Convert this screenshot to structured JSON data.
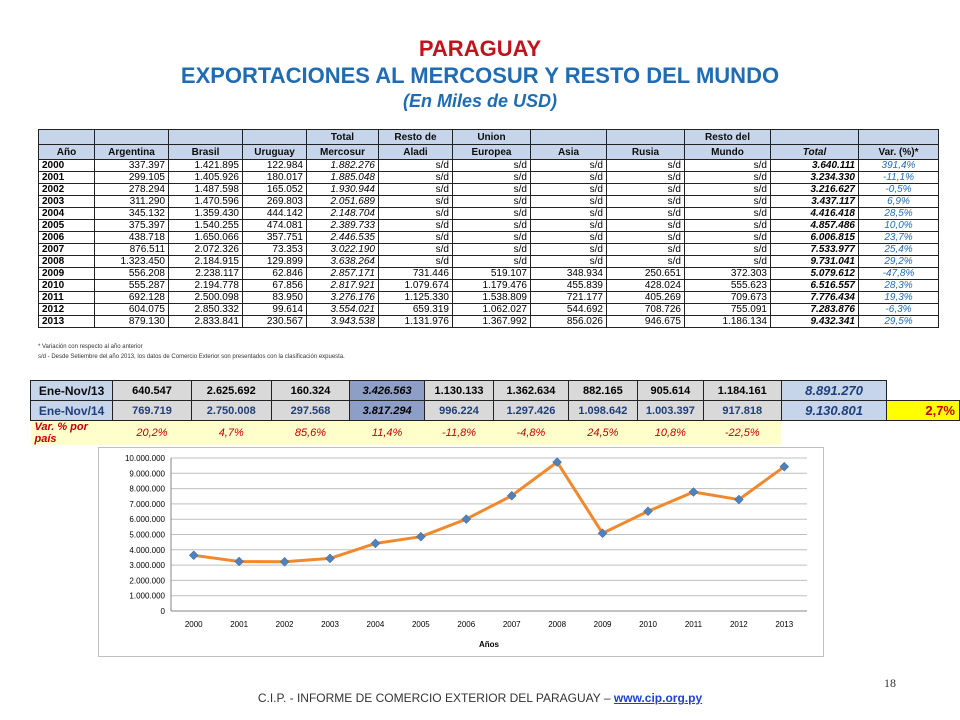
{
  "title": "PARAGUAY",
  "subtitle": "EXPORTACIONES AL MERCOSUR Y RESTO DEL MUNDO",
  "unit_note": "(En Miles de USD)",
  "table": {
    "header_row1": [
      "",
      "",
      "",
      "",
      "Total",
      "Resto de",
      "Union",
      "",
      "",
      "Resto del",
      "",
      ""
    ],
    "header_row2": [
      "Año",
      "Argentina",
      "Brasil",
      "Uruguay",
      "Mercosur",
      "Aladi",
      "Europea",
      "Asia",
      "Rusia",
      "Mundo",
      "Total",
      "Var. (%)*"
    ],
    "rows": [
      [
        "2000",
        "337.397",
        "1.421.895",
        "122.984",
        "1.882.276",
        "s/d",
        "s/d",
        "s/d",
        "s/d",
        "s/d",
        "3.640.111",
        "391,4%"
      ],
      [
        "2001",
        "299.105",
        "1.405.926",
        "180.017",
        "1.885.048",
        "s/d",
        "s/d",
        "s/d",
        "s/d",
        "s/d",
        "3.234.330",
        "-11,1%"
      ],
      [
        "2002",
        "278.294",
        "1.487.598",
        "165.052",
        "1.930.944",
        "s/d",
        "s/d",
        "s/d",
        "s/d",
        "s/d",
        "3.216.627",
        "-0,5%"
      ],
      [
        "2003",
        "311.290",
        "1.470.596",
        "269.803",
        "2.051.689",
        "s/d",
        "s/d",
        "s/d",
        "s/d",
        "s/d",
        "3.437.117",
        "6,9%"
      ],
      [
        "2004",
        "345.132",
        "1.359.430",
        "444.142",
        "2.148.704",
        "s/d",
        "s/d",
        "s/d",
        "s/d",
        "s/d",
        "4.416.418",
        "28,5%"
      ],
      [
        "2005",
        "375.397",
        "1.540.255",
        "474.081",
        "2.389.733",
        "s/d",
        "s/d",
        "s/d",
        "s/d",
        "s/d",
        "4.857.486",
        "10,0%"
      ],
      [
        "2006",
        "438.718",
        "1.650.066",
        "357.751",
        "2.446.535",
        "s/d",
        "s/d",
        "s/d",
        "s/d",
        "s/d",
        "6.006.815",
        "23,7%"
      ],
      [
        "2007",
        "876.511",
        "2.072.326",
        "73.353",
        "3.022.190",
        "s/d",
        "s/d",
        "s/d",
        "s/d",
        "s/d",
        "7.533.977",
        "25,4%"
      ],
      [
        "2008",
        "1.323.450",
        "2.184.915",
        "129.899",
        "3.638.264",
        "s/d",
        "s/d",
        "s/d",
        "s/d",
        "s/d",
        "9.731.041",
        "29,2%"
      ],
      [
        "2009",
        "556.208",
        "2.238.117",
        "62.846",
        "2.857.171",
        "731.446",
        "519.107",
        "348.934",
        "250.651",
        "372.303",
        "5.079.612",
        "-47,8%"
      ],
      [
        "2010",
        "555.287",
        "2.194.778",
        "67.856",
        "2.817.921",
        "1.079.674",
        "1.179.476",
        "455.839",
        "428.024",
        "555.623",
        "6.516.557",
        "28,3%"
      ],
      [
        "2011",
        "692.128",
        "2.500.098",
        "83.950",
        "3.276.176",
        "1.125.330",
        "1.538.809",
        "721.177",
        "405.269",
        "709.673",
        "7.776.434",
        "19,3%"
      ],
      [
        "2012",
        "604.075",
        "2.850.332",
        "99.614",
        "3.554.021",
        "659.319",
        "1.062.027",
        "544.692",
        "708.726",
        "755.091",
        "7.283.876",
        "-6,3%"
      ],
      [
        "2013",
        "879.130",
        "2.833.841",
        "230.567",
        "3.943.538",
        "1.131.976",
        "1.367.992",
        "856.026",
        "946.675",
        "1.186.134",
        "9.432.341",
        "29,5%"
      ]
    ]
  },
  "notes": [
    "* Variación con respecto al año anterior",
    "s/d - Desde Setiembre del año 2013, los datos de Comercio Exterior son presentados con la clasificación expuesta."
  ],
  "summary": {
    "rows": [
      {
        "label": "Ene-Nov/13",
        "values": [
          "640.547",
          "2.625.692",
          "160.324",
          "3.426.563",
          "1.130.133",
          "1.362.634",
          "882.165",
          "905.614",
          "1.184.161"
        ],
        "total": "8.891.270",
        "pct": ""
      },
      {
        "label": "Ene-Nov/14",
        "values": [
          "769.719",
          "2.750.008",
          "297.568",
          "3.817.294",
          "996.224",
          "1.297.426",
          "1.098.642",
          "1.003.397",
          "917.818"
        ],
        "total": "9.130.801",
        "pct": "2,7%"
      }
    ],
    "var_label": "Var. % por país",
    "var_values": [
      "20,2%",
      "4,7%",
      "85,6%",
      "11,4%",
      "-11,8%",
      "-4,8%",
      "24,5%",
      "10,8%",
      "-22,5%"
    ]
  },
  "chart_data": {
    "type": "line",
    "categories": [
      "2000",
      "2001",
      "2002",
      "2003",
      "2004",
      "2005",
      "2006",
      "2007",
      "2008",
      "2009",
      "2010",
      "2011",
      "2012",
      "2013"
    ],
    "series": [
      {
        "values": [
          3640111,
          3234330,
          3216627,
          3437117,
          4416418,
          4857486,
          6006815,
          7533977,
          9731041,
          5079612,
          6516557,
          7776434,
          7283876,
          9432341
        ]
      }
    ],
    "yticks": [
      "0",
      "1.000.000",
      "2.000.000",
      "3.000.000",
      "4.000.000",
      "5.000.000",
      "6.000.000",
      "7.000.000",
      "8.000.000",
      "9.000.000",
      "10.000.000"
    ],
    "ylim": [
      0,
      10000000
    ],
    "xlabel": "Años",
    "ylabel": "",
    "grid": true,
    "line_color": "#f0892e",
    "marker_color": "#4f81bd"
  },
  "footer": {
    "text": "C.I.P. - INFORME DE COMERCIO EXTERIOR DEL PARAGUAY – ",
    "link": "www.cip.org.py"
  },
  "page_number": "18"
}
